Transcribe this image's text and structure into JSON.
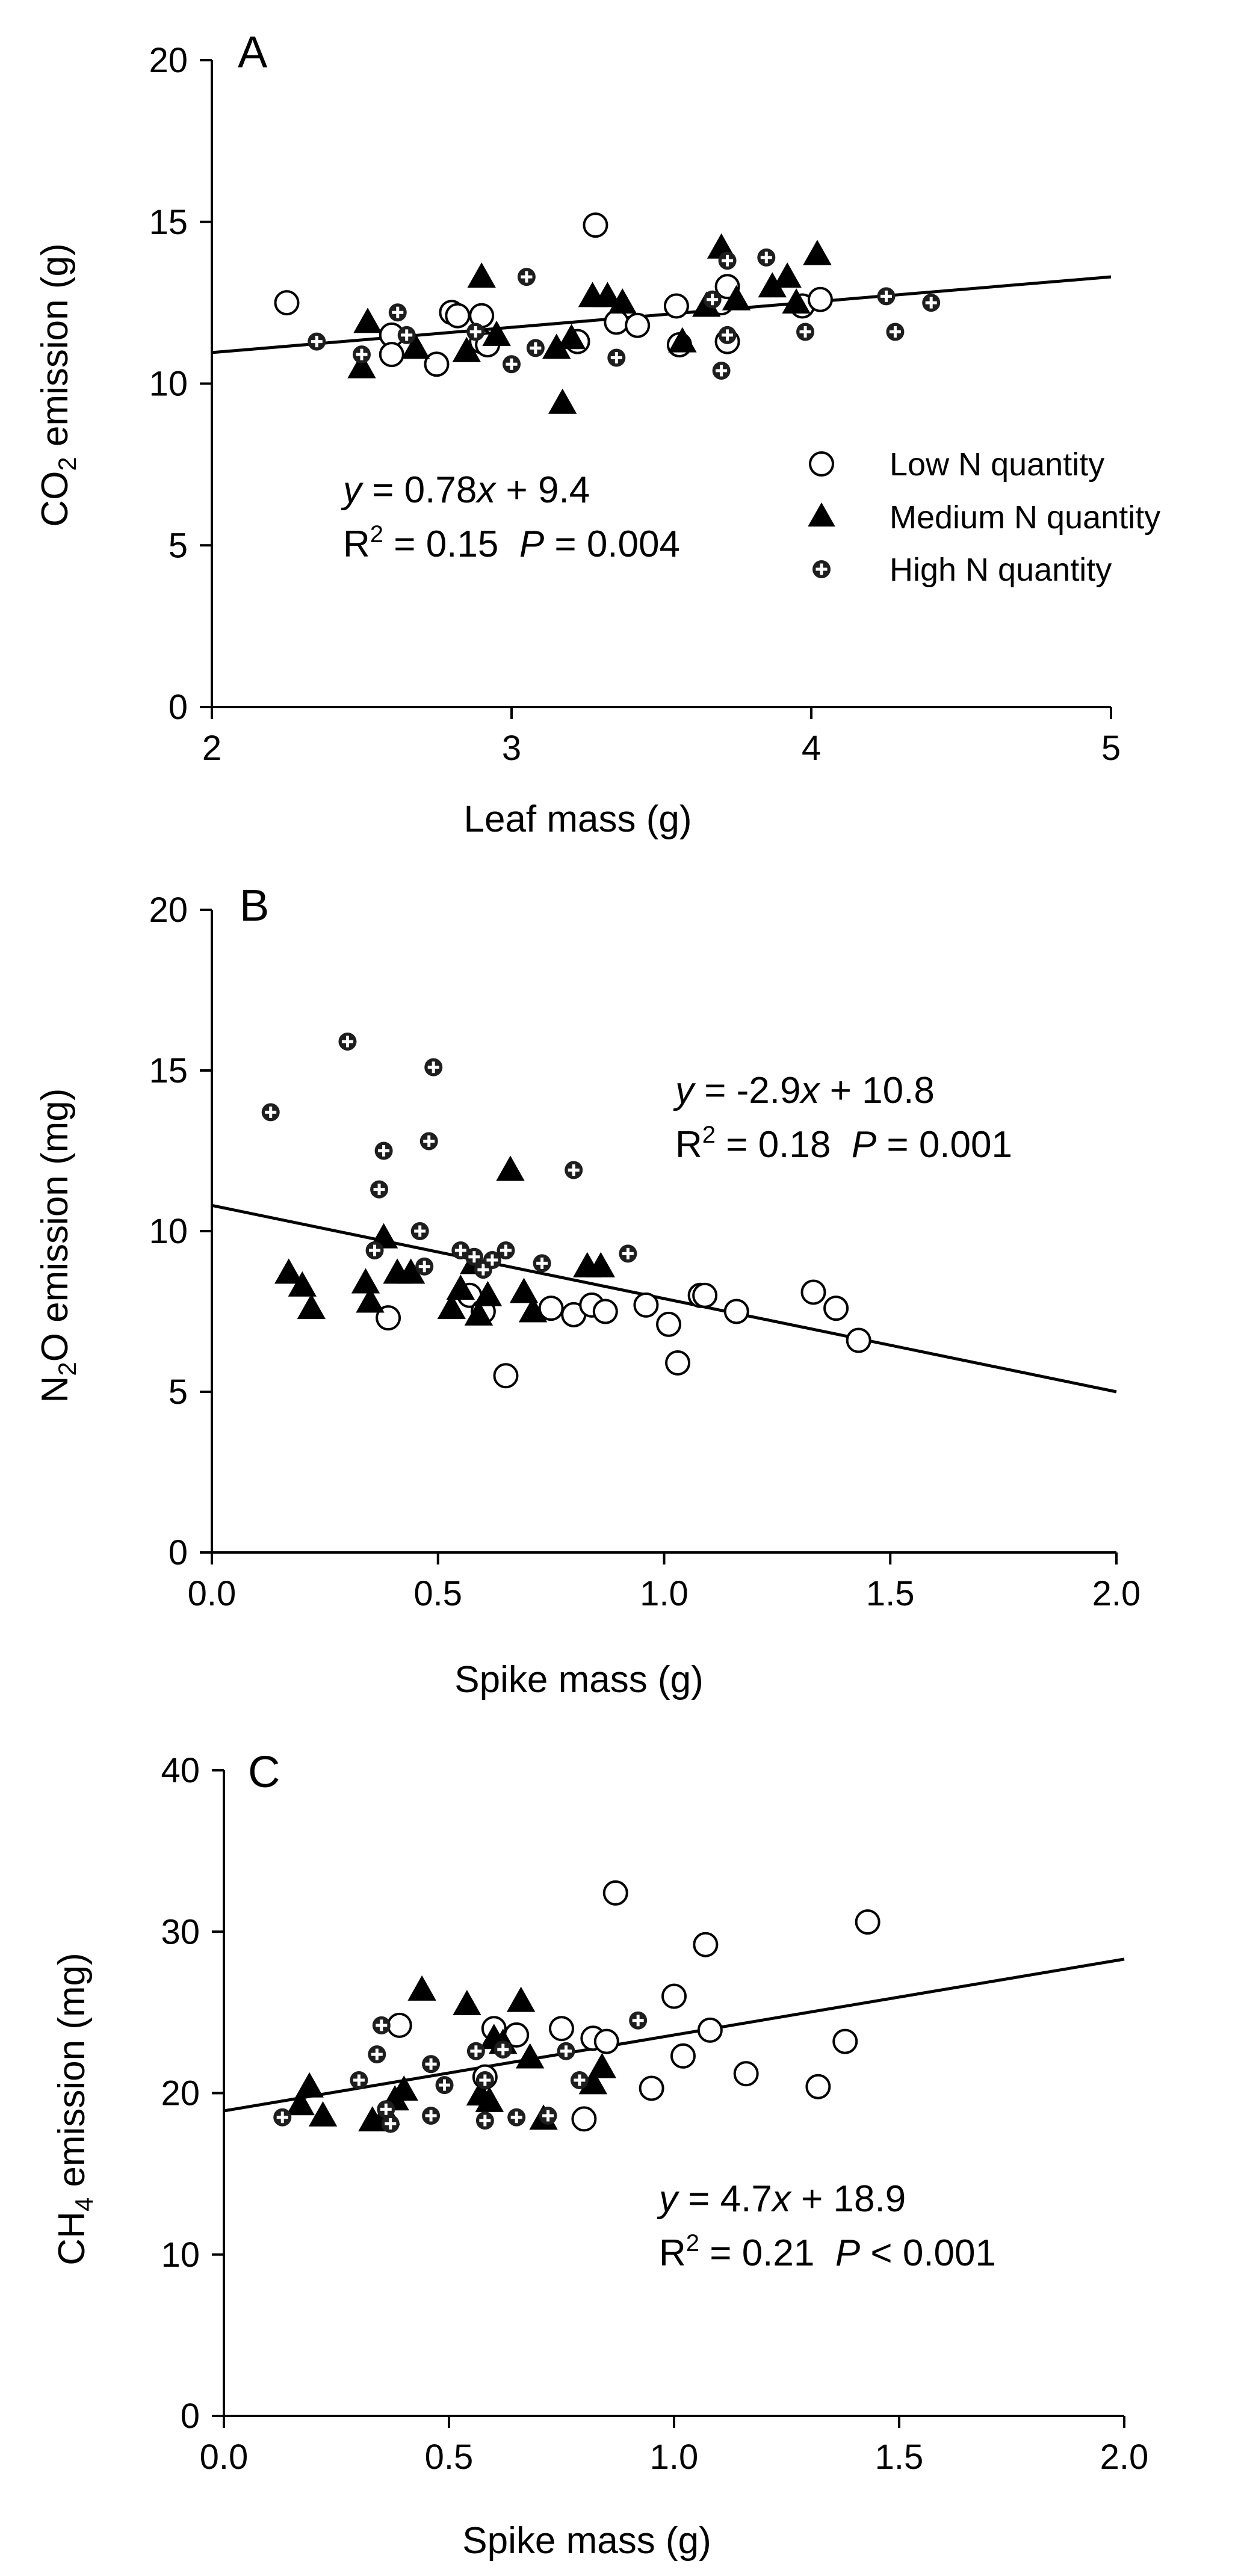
{
  "chart_data": [
    {
      "id": "A",
      "type": "scatter",
      "panel_letter": "A",
      "xlabel": "Leaf mass (g)",
      "ylabel_main": "CO",
      "ylabel_sub": "2",
      "ylabel_tail": " emission (g)",
      "xlim": [
        2,
        5
      ],
      "ylim": [
        0,
        20
      ],
      "xticks": [
        2,
        3,
        4,
        5
      ],
      "xtick_labels": [
        "2",
        "3",
        "4",
        "5"
      ],
      "yticks": [
        0,
        5,
        10,
        15,
        20
      ],
      "ytick_labels": [
        "0",
        "5",
        "10",
        "15",
        "20"
      ],
      "fit": {
        "slope": 0.78,
        "intercept": 9.4,
        "x_range": [
          2,
          5
        ]
      },
      "equation": {
        "y": "y",
        "eq": " = 0.78",
        "x": "x",
        "rest": " + 9.4"
      },
      "stats": {
        "r": "R",
        "sup": "2",
        "r_val": " = 0.15  ",
        "p": "P",
        "p_val": " = 0.004"
      },
      "legend": [
        {
          "key": "low",
          "label": "Low N quantity"
        },
        {
          "key": "med",
          "label": "Medium N quantity"
        },
        {
          "key": "high",
          "label": "High N quantity"
        }
      ],
      "series": [
        {
          "key": "low",
          "name": "Low N quantity",
          "points": [
            [
              2.25,
              12.5
            ],
            [
              2.6,
              11.5
            ],
            [
              2.6,
              10.9
            ],
            [
              2.75,
              10.6
            ],
            [
              2.8,
              12.2
            ],
            [
              2.82,
              12.1
            ],
            [
              2.9,
              12.1
            ],
            [
              2.9,
              11.3
            ],
            [
              2.92,
              11.2
            ],
            [
              3.22,
              11.3
            ],
            [
              3.28,
              14.9
            ],
            [
              3.35,
              11.9
            ],
            [
              3.42,
              11.8
            ],
            [
              3.55,
              12.4
            ],
            [
              3.56,
              11.2
            ],
            [
              3.7,
              12.5
            ],
            [
              3.72,
              13
            ],
            [
              3.72,
              11.3
            ],
            [
              3.97,
              12.4
            ],
            [
              4.03,
              12.6
            ]
          ]
        },
        {
          "key": "med",
          "name": "Medium N quantity",
          "points": [
            [
              2.5,
              10.5
            ],
            [
              2.52,
              11.9
            ],
            [
              2.68,
              11.1
            ],
            [
              2.85,
              11
            ],
            [
              2.9,
              13.3
            ],
            [
              2.95,
              11.5
            ],
            [
              3.15,
              11.1
            ],
            [
              3.17,
              9.4
            ],
            [
              3.2,
              11.4
            ],
            [
              3.27,
              12.7
            ],
            [
              3.32,
              12.7
            ],
            [
              3.37,
              12.5
            ],
            [
              3.57,
              11.3
            ],
            [
              3.65,
              12.4
            ],
            [
              3.7,
              14.2
            ],
            [
              3.75,
              12.6
            ],
            [
              3.87,
              13
            ],
            [
              3.92,
              13.3
            ],
            [
              3.95,
              12.5
            ],
            [
              4.02,
              14
            ]
          ]
        },
        {
          "key": "high",
          "name": "High N quantity",
          "points": [
            [
              2.35,
              11.3
            ],
            [
              2.5,
              10.9
            ],
            [
              2.62,
              12.2
            ],
            [
              2.65,
              11.5
            ],
            [
              2.88,
              11.6
            ],
            [
              3,
              10.6
            ],
            [
              3.05,
              13.3
            ],
            [
              3.08,
              11.1
            ],
            [
              3.35,
              10.8
            ],
            [
              3.67,
              12.6
            ],
            [
              3.7,
              10.4
            ],
            [
              3.72,
              11.5
            ],
            [
              3.72,
              13.8
            ],
            [
              3.85,
              13.9
            ],
            [
              3.98,
              11.6
            ],
            [
              4.25,
              12.7
            ],
            [
              4.28,
              11.6
            ],
            [
              4.4,
              12.5
            ]
          ]
        }
      ]
    },
    {
      "id": "B",
      "type": "scatter",
      "panel_letter": "B",
      "xlabel": "Spike mass (g)",
      "ylabel_main": "N",
      "ylabel_sub": "2",
      "ylabel_tail": "O emission (mg)",
      "xlim": [
        0,
        2
      ],
      "ylim": [
        0,
        20
      ],
      "xticks": [
        0,
        0.5,
        1,
        1.5,
        2
      ],
      "xtick_labels": [
        "0.0",
        "0.5",
        "1.0",
        "1.5",
        "2.0"
      ],
      "yticks": [
        0,
        5,
        10,
        15,
        20
      ],
      "ytick_labels": [
        "0",
        "5",
        "10",
        "15",
        "20"
      ],
      "fit": {
        "slope": -2.9,
        "intercept": 10.8,
        "x_range": [
          0,
          2
        ]
      },
      "equation": {
        "y": "y",
        "eq": " = -2.9",
        "x": "x",
        "rest": " + 10.8"
      },
      "stats": {
        "r": "R",
        "sup": "2",
        "r_val": " = 0.18  ",
        "p": "P",
        "p_val": " = 0.001"
      },
      "series": [
        {
          "key": "low",
          "name": "Low N quantity",
          "points": [
            [
              0.39,
              7.3
            ],
            [
              0.57,
              8
            ],
            [
              0.6,
              7.5
            ],
            [
              0.65,
              5.5
            ],
            [
              0.75,
              7.6
            ],
            [
              0.8,
              7.4
            ],
            [
              0.84,
              7.7
            ],
            [
              0.87,
              7.5
            ],
            [
              0.96,
              7.7
            ],
            [
              1.01,
              7.1
            ],
            [
              1.03,
              5.9
            ],
            [
              1.08,
              8
            ],
            [
              1.09,
              8
            ],
            [
              1.16,
              7.5
            ],
            [
              1.33,
              8.1
            ],
            [
              1.38,
              7.6
            ],
            [
              1.43,
              6.6
            ]
          ]
        },
        {
          "key": "med",
          "name": "Medium N quantity",
          "points": [
            [
              0.17,
              8.7
            ],
            [
              0.2,
              8.3
            ],
            [
              0.22,
              7.6
            ],
            [
              0.34,
              8.4
            ],
            [
              0.35,
              7.8
            ],
            [
              0.38,
              9.8
            ],
            [
              0.41,
              8.7
            ],
            [
              0.44,
              8.7
            ],
            [
              0.53,
              7.6
            ],
            [
              0.55,
              8.2
            ],
            [
              0.58,
              9
            ],
            [
              0.59,
              7.4
            ],
            [
              0.61,
              8
            ],
            [
              0.66,
              11.9
            ],
            [
              0.69,
              8.1
            ],
            [
              0.71,
              7.5
            ],
            [
              0.83,
              8.9
            ],
            [
              0.86,
              8.9
            ]
          ]
        },
        {
          "key": "high",
          "name": "High N quantity",
          "points": [
            [
              0.13,
              13.7
            ],
            [
              0.3,
              15.9
            ],
            [
              0.36,
              9.4
            ],
            [
              0.37,
              11.3
            ],
            [
              0.38,
              12.5
            ],
            [
              0.47,
              8.9
            ],
            [
              0.48,
              12.8
            ],
            [
              0.49,
              15.1
            ],
            [
              0.46,
              10
            ],
            [
              0.55,
              9.4
            ],
            [
              0.58,
              9.2
            ],
            [
              0.6,
              8.8
            ],
            [
              0.62,
              9.1
            ],
            [
              0.65,
              9.4
            ],
            [
              0.73,
              9
            ],
            [
              0.8,
              11.9
            ],
            [
              0.92,
              9.3
            ]
          ]
        }
      ]
    },
    {
      "id": "C",
      "type": "scatter",
      "panel_letter": "C",
      "xlabel": "Spike mass (g)",
      "ylabel_main": "CH",
      "ylabel_sub": "4",
      "ylabel_tail": " emission (mg)",
      "xlim": [
        0,
        2
      ],
      "ylim": [
        0,
        40
      ],
      "xticks": [
        0,
        0.5,
        1,
        1.5,
        2
      ],
      "xtick_labels": [
        "0.0",
        "0.5",
        "1.0",
        "1.5",
        "2.0"
      ],
      "yticks": [
        0,
        10,
        20,
        30,
        40
      ],
      "ytick_labels": [
        "0",
        "10",
        "20",
        "30",
        "40"
      ],
      "fit": {
        "slope": 4.7,
        "intercept": 18.9,
        "x_range": [
          0,
          2
        ]
      },
      "equation": {
        "y": "y",
        "eq": " = 4.7",
        "x": "x",
        "rest": " + 18.9"
      },
      "stats": {
        "r": "R",
        "sup": "2",
        "r_val": " = 0.21  ",
        "p": "P",
        "p_val": " < 0.001"
      },
      "series": [
        {
          "key": "low",
          "name": "Low N quantity",
          "points": [
            [
              0.39,
              24.2
            ],
            [
              0.58,
              21
            ],
            [
              0.6,
              24
            ],
            [
              0.65,
              23.6
            ],
            [
              0.75,
              24
            ],
            [
              0.8,
              18.4
            ],
            [
              0.82,
              23.4
            ],
            [
              0.85,
              23.2
            ],
            [
              0.87,
              32.4
            ],
            [
              0.95,
              20.3
            ],
            [
              1,
              26
            ],
            [
              1.02,
              22.3
            ],
            [
              1.07,
              29.2
            ],
            [
              1.08,
              23.9
            ],
            [
              1.16,
              21.2
            ],
            [
              1.32,
              20.4
            ],
            [
              1.38,
              23.2
            ],
            [
              1.43,
              30.6
            ]
          ]
        },
        {
          "key": "med",
          "name": "Medium N quantity",
          "points": [
            [
              0.17,
              19.3
            ],
            [
              0.19,
              20.4
            ],
            [
              0.22,
              18.6
            ],
            [
              0.33,
              18.3
            ],
            [
              0.36,
              18.7
            ],
            [
              0.38,
              19.6
            ],
            [
              0.4,
              20.2
            ],
            [
              0.44,
              26.4
            ],
            [
              0.54,
              25.5
            ],
            [
              0.57,
              19.9
            ],
            [
              0.59,
              19.5
            ],
            [
              0.6,
              23.4
            ],
            [
              0.62,
              23.1
            ],
            [
              0.66,
              25.7
            ],
            [
              0.68,
              22.2
            ],
            [
              0.71,
              18.4
            ],
            [
              0.82,
              20.6
            ],
            [
              0.84,
              21.6
            ]
          ]
        },
        {
          "key": "high",
          "name": "High N quantity",
          "points": [
            [
              0.13,
              18.5
            ],
            [
              0.3,
              20.8
            ],
            [
              0.34,
              22.4
            ],
            [
              0.35,
              24.2
            ],
            [
              0.36,
              19
            ],
            [
              0.37,
              18.1
            ],
            [
              0.46,
              18.6
            ],
            [
              0.46,
              21.8
            ],
            [
              0.49,
              20.5
            ],
            [
              0.56,
              22.6
            ],
            [
              0.58,
              20.8
            ],
            [
              0.58,
              18.3
            ],
            [
              0.62,
              22.7
            ],
            [
              0.65,
              18.5
            ],
            [
              0.72,
              18.6
            ],
            [
              0.76,
              22.6
            ],
            [
              0.79,
              20.8
            ],
            [
              0.92,
              24.5
            ]
          ]
        }
      ]
    }
  ]
}
